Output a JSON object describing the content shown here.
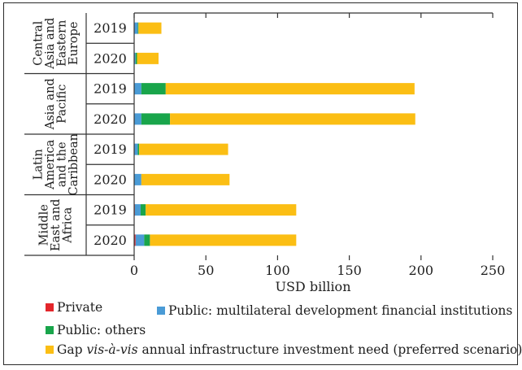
{
  "chart_data": {
    "type": "bar",
    "orientation": "horizontal",
    "stacked": true,
    "xlabel": "USD billion",
    "xlim": [
      0,
      250
    ],
    "xticks": [
      0,
      50,
      100,
      150,
      200,
      250
    ],
    "groups": [
      {
        "label": "Central Asia and Eastern Europe",
        "years": [
          "2019",
          "2020"
        ]
      },
      {
        "label": "Asia and Pacific",
        "years": [
          "2019",
          "2020"
        ]
      },
      {
        "label": "Latin America and the Caribbean",
        "years": [
          "2019",
          "2020"
        ]
      },
      {
        "label": "Middle East and Africa",
        "years": [
          "2019",
          "2020"
        ]
      }
    ],
    "categories": [
      "Central Asia and Eastern Europe 2019",
      "Central Asia and Eastern Europe 2020",
      "Asia and Pacific 2019",
      "Asia and Pacific 2020",
      "Latin America and the Caribbean 2019",
      "Latin America and the Caribbean 2020",
      "Middle East and Africa 2019",
      "Middle East and Africa 2020"
    ],
    "series": [
      {
        "name": "Private",
        "color": "#e3262b",
        "values": [
          0,
          0,
          0,
          0,
          0,
          0,
          0.5,
          1
        ]
      },
      {
        "name": "Public: multilateral development financial institutions",
        "color": "#4a9bd6",
        "values": [
          2.5,
          1,
          5,
          5,
          2.5,
          5,
          4,
          6
        ]
      },
      {
        "name": "Public: others",
        "color": "#19a54b",
        "values": [
          0.5,
          1,
          17,
          20,
          1,
          0,
          3.5,
          4
        ]
      },
      {
        "name": "Gap vis-à-vis annual infrastructure investment need (preferred scenario)",
        "color": "#fbbe14",
        "values": [
          16,
          15,
          173.5,
          171,
          62,
          61.5,
          105,
          102
        ]
      }
    ],
    "legend": {
      "private": "Private",
      "mdfi": "Public: multilateral development financial institutions",
      "others": "Public: others",
      "gap_prefix": "Gap ",
      "gap_italic": "vis-à-vis",
      "gap_suffix": " annual infrastructure investment need (preferred scenario)"
    },
    "grid": false,
    "legend_position": "bottom"
  }
}
